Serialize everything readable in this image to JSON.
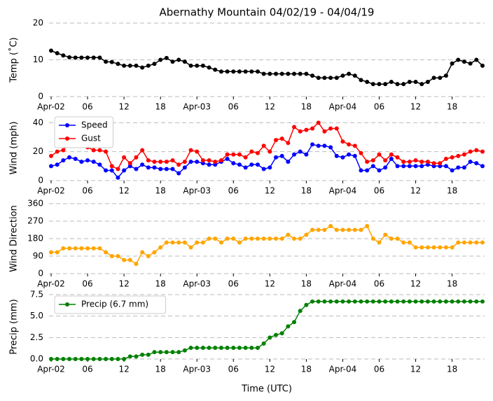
{
  "chart_data": [
    {
      "type": "line",
      "title": "Abernathy Mountain 04/02/19 - 04/04/19",
      "ylabel": "Temp (˚C)",
      "x": [
        0,
        1,
        2,
        3,
        4,
        5,
        6,
        7,
        8,
        9,
        10,
        11,
        12,
        13,
        14,
        15,
        16,
        17,
        18,
        19,
        20,
        21,
        22,
        23,
        24,
        25,
        26,
        27,
        28,
        29,
        30,
        31,
        32,
        33,
        34,
        35,
        36,
        37,
        38,
        39,
        40,
        41,
        42,
        43,
        44,
        45,
        46,
        47,
        48,
        49,
        50,
        51,
        52,
        53,
        54,
        55,
        56,
        57,
        58,
        59,
        60,
        61,
        62,
        63,
        64,
        65,
        66,
        67,
        68,
        69,
        70,
        71
      ],
      "xlim": [
        0,
        71
      ],
      "xticks": [
        {
          "value": 0,
          "label": "Apr-02"
        },
        {
          "value": 6,
          "label": "06"
        },
        {
          "value": 12,
          "label": "12"
        },
        {
          "value": 18,
          "label": "18"
        },
        {
          "value": 24,
          "label": "Apr-03"
        },
        {
          "value": 30,
          "label": "06"
        },
        {
          "value": 36,
          "label": "12"
        },
        {
          "value": 42,
          "label": "18"
        },
        {
          "value": 48,
          "label": "Apr-04"
        },
        {
          "value": 54,
          "label": "06"
        },
        {
          "value": 60,
          "label": "12"
        },
        {
          "value": 66,
          "label": "18"
        }
      ],
      "ylim": [
        0,
        20
      ],
      "yticks": [
        0,
        10,
        20
      ],
      "grid": true,
      "series": [
        {
          "name": null,
          "color": "#000000",
          "values": [
            12.5,
            11.8,
            11.2,
            10.7,
            10.6,
            10.6,
            10.6,
            10.6,
            10.6,
            9.5,
            9.4,
            8.9,
            8.4,
            8.4,
            8.4,
            7.9,
            8.4,
            8.9,
            10.0,
            10.5,
            9.5,
            10.0,
            9.5,
            8.4,
            8.4,
            8.4,
            7.9,
            7.3,
            6.8,
            6.8,
            6.8,
            6.8,
            6.8,
            6.8,
            6.8,
            6.2,
            6.2,
            6.2,
            6.2,
            6.2,
            6.2,
            6.2,
            6.2,
            5.7,
            5.1,
            5.1,
            5.1,
            5.1,
            5.7,
            6.2,
            5.7,
            4.5,
            4.0,
            3.4,
            3.4,
            3.4,
            4.0,
            3.4,
            3.4,
            4.0,
            4.0,
            3.4,
            4.0,
            5.1,
            5.1,
            5.7,
            9.0,
            10.0,
            9.5,
            9.0,
            10.0,
            8.4
          ]
        }
      ]
    },
    {
      "type": "line",
      "ylabel": "Wind (mph)",
      "x": [
        0,
        1,
        2,
        3,
        4,
        5,
        6,
        7,
        8,
        9,
        10,
        11,
        12,
        13,
        14,
        15,
        16,
        17,
        18,
        19,
        20,
        21,
        22,
        23,
        24,
        25,
        26,
        27,
        28,
        29,
        30,
        31,
        32,
        33,
        34,
        35,
        36,
        37,
        38,
        39,
        40,
        41,
        42,
        43,
        44,
        45,
        46,
        47,
        48,
        49,
        50,
        51,
        52,
        53,
        54,
        55,
        56,
        57,
        58,
        59,
        60,
        61,
        62,
        63,
        64,
        65,
        66,
        67,
        68,
        69,
        70,
        71
      ],
      "xlim": [
        0,
        71
      ],
      "xticks": [
        {
          "value": 0,
          "label": "Apr-02"
        },
        {
          "value": 6,
          "label": "06"
        },
        {
          "value": 12,
          "label": "12"
        },
        {
          "value": 18,
          "label": "18"
        },
        {
          "value": 24,
          "label": "Apr-03"
        },
        {
          "value": 30,
          "label": "06"
        },
        {
          "value": 36,
          "label": "12"
        },
        {
          "value": 42,
          "label": "18"
        },
        {
          "value": 48,
          "label": "Apr-04"
        },
        {
          "value": 54,
          "label": "06"
        },
        {
          "value": 60,
          "label": "12"
        },
        {
          "value": 66,
          "label": "18"
        }
      ],
      "ylim": [
        0,
        45
      ],
      "yticks": [
        0,
        20,
        40
      ],
      "grid": true,
      "legend": "upper left",
      "series": [
        {
          "name": "Speed",
          "color": "#0000ff",
          "values": [
            10,
            11,
            14,
            16,
            15,
            13,
            14,
            13,
            11,
            7,
            7,
            2,
            7,
            10,
            8,
            11,
            9,
            9,
            8,
            8,
            8,
            5,
            9,
            13,
            13,
            12,
            11,
            11,
            13,
            15,
            12,
            11,
            9,
            11,
            11,
            8,
            9,
            16,
            17,
            13,
            18,
            20,
            18,
            25,
            24,
            24,
            23,
            17,
            16,
            18,
            17,
            7,
            7,
            10,
            7,
            9,
            15,
            10,
            10,
            10,
            10,
            10,
            11,
            10,
            10,
            10,
            7,
            9,
            9,
            13,
            12,
            10
          ]
        },
        {
          "name": "Gust",
          "color": "#ff0000",
          "values": [
            17,
            20,
            21,
            26,
            25,
            25,
            23,
            21,
            21,
            20,
            10,
            8,
            16,
            12,
            16,
            21,
            14,
            13,
            13,
            13,
            14,
            11,
            13,
            21,
            20,
            14,
            14,
            13,
            14,
            18,
            18,
            18,
            16,
            20,
            19,
            24,
            20,
            28,
            29,
            26,
            37,
            34,
            35,
            36,
            40,
            34,
            36,
            36,
            27,
            25,
            24,
            19,
            13,
            14,
            18,
            14,
            18,
            16,
            13,
            13,
            14,
            13,
            13,
            12,
            12,
            15,
            16,
            17,
            18,
            20,
            21,
            20
          ]
        }
      ]
    },
    {
      "type": "line",
      "ylabel": "Wind Direction",
      "x": [
        0,
        1,
        2,
        3,
        4,
        5,
        6,
        7,
        8,
        9,
        10,
        11,
        12,
        13,
        14,
        15,
        16,
        17,
        18,
        19,
        20,
        21,
        22,
        23,
        24,
        25,
        26,
        27,
        28,
        29,
        30,
        31,
        32,
        33,
        34,
        35,
        36,
        37,
        38,
        39,
        40,
        41,
        42,
        43,
        44,
        45,
        46,
        47,
        48,
        49,
        50,
        51,
        52,
        53,
        54,
        55,
        56,
        57,
        58,
        59,
        60,
        61,
        62,
        63,
        64,
        65,
        66,
        67,
        68,
        69,
        70,
        71
      ],
      "xlim": [
        0,
        71
      ],
      "xticks": [
        {
          "value": 0,
          "label": "Apr-02"
        },
        {
          "value": 6,
          "label": "06"
        },
        {
          "value": 12,
          "label": "12"
        },
        {
          "value": 18,
          "label": "18"
        },
        {
          "value": 24,
          "label": "Apr-03"
        },
        {
          "value": 30,
          "label": "06"
        },
        {
          "value": 36,
          "label": "12"
        },
        {
          "value": 42,
          "label": "18"
        },
        {
          "value": 48,
          "label": "Apr-04"
        },
        {
          "value": 54,
          "label": "06"
        },
        {
          "value": 60,
          "label": "12"
        },
        {
          "value": 66,
          "label": "18"
        }
      ],
      "ylim": [
        0,
        360
      ],
      "yticks": [
        0,
        90,
        180,
        270,
        360
      ],
      "grid": true,
      "series": [
        {
          "name": null,
          "color": "#ffa500",
          "values": [
            110,
            110,
            130,
            130,
            130,
            130,
            130,
            130,
            130,
            110,
            90,
            90,
            70,
            70,
            50,
            110,
            90,
            110,
            135,
            160,
            160,
            160,
            160,
            135,
            160,
            160,
            180,
            180,
            160,
            180,
            180,
            160,
            180,
            180,
            180,
            180,
            180,
            180,
            180,
            200,
            180,
            180,
            200,
            225,
            225,
            225,
            245,
            225,
            225,
            225,
            225,
            225,
            245,
            180,
            160,
            200,
            180,
            180,
            160,
            160,
            135,
            135,
            135,
            135,
            135,
            135,
            135,
            160,
            160,
            160,
            160,
            160
          ]
        }
      ]
    },
    {
      "type": "line",
      "ylabel": "Precip (mm)",
      "xlabel": "Time (UTC)",
      "x": [
        0,
        1,
        2,
        3,
        4,
        5,
        6,
        7,
        8,
        9,
        10,
        11,
        12,
        13,
        14,
        15,
        16,
        17,
        18,
        19,
        20,
        21,
        22,
        23,
        24,
        25,
        26,
        27,
        28,
        29,
        30,
        31,
        32,
        33,
        34,
        35,
        36,
        37,
        38,
        39,
        40,
        41,
        42,
        43,
        44,
        45,
        46,
        47,
        48,
        49,
        50,
        51,
        52,
        53,
        54,
        55,
        56,
        57,
        58,
        59,
        60,
        61,
        62,
        63,
        64,
        65,
        66,
        67,
        68,
        69,
        70,
        71
      ],
      "xlim": [
        0,
        71
      ],
      "xticks": [
        {
          "value": 0,
          "label": "Apr-02"
        },
        {
          "value": 6,
          "label": "06"
        },
        {
          "value": 12,
          "label": "12"
        },
        {
          "value": 18,
          "label": "18"
        },
        {
          "value": 24,
          "label": "Apr-03"
        },
        {
          "value": 30,
          "label": "06"
        },
        {
          "value": 36,
          "label": "12"
        },
        {
          "value": 42,
          "label": "18"
        },
        {
          "value": 48,
          "label": "Apr-04"
        },
        {
          "value": 54,
          "label": "06"
        },
        {
          "value": 60,
          "label": "12"
        },
        {
          "value": 66,
          "label": "18"
        }
      ],
      "ylim": [
        0,
        7.5
      ],
      "yticks": [
        {
          "value": 0,
          "label": "0.0"
        },
        2.5,
        {
          "value": 5,
          "label": "5.0"
        },
        7.5
      ],
      "grid": true,
      "legend": "upper left",
      "series": [
        {
          "name": "Precip (6.7 mm)",
          "color": "#008000",
          "values": [
            0,
            0,
            0,
            0,
            0,
            0,
            0,
            0,
            0,
            0,
            0,
            0,
            0,
            0.3,
            0.3,
            0.5,
            0.5,
            0.8,
            0.8,
            0.8,
            0.8,
            0.8,
            1.0,
            1.3,
            1.3,
            1.3,
            1.3,
            1.3,
            1.3,
            1.3,
            1.3,
            1.3,
            1.3,
            1.3,
            1.3,
            1.8,
            2.5,
            2.8,
            3.0,
            3.8,
            4.3,
            5.6,
            6.3,
            6.7,
            6.7,
            6.7,
            6.7,
            6.7,
            6.7,
            6.7,
            6.7,
            6.7,
            6.7,
            6.7,
            6.7,
            6.7,
            6.7,
            6.7,
            6.7,
            6.7,
            6.7,
            6.7,
            6.7,
            6.7,
            6.7,
            6.7,
            6.7,
            6.7,
            6.7,
            6.7,
            6.7,
            6.7
          ]
        }
      ]
    }
  ]
}
